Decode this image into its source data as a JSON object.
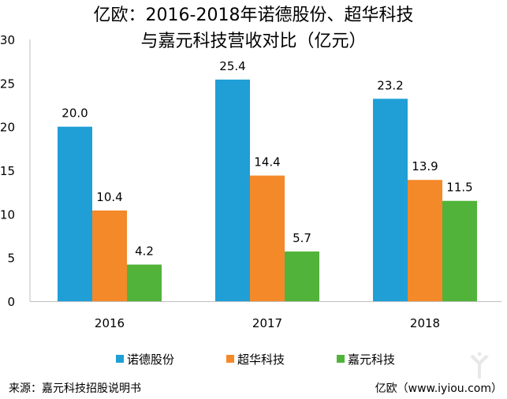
{
  "chart_data": {
    "type": "bar",
    "title": [
      "亿欧：2016-2018年诺德股份、超华科技",
      "与嘉元科技营收对比（亿元）"
    ],
    "categories": [
      "2016",
      "2017",
      "2018"
    ],
    "series": [
      {
        "name": "诺德股份",
        "values": [
          20.0,
          25.4,
          23.2
        ],
        "labels": [
          "20.0",
          "25.4",
          "23.2"
        ],
        "color": "#1f9fd6"
      },
      {
        "name": "超华科技",
        "values": [
          10.4,
          14.4,
          13.9
        ],
        "labels": [
          "10.4",
          "14.4",
          "13.9"
        ],
        "color": "#f4892a"
      },
      {
        "name": "嘉元科技",
        "values": [
          4.2,
          5.7,
          11.5
        ],
        "labels": [
          "4.2",
          "5.7",
          "11.5"
        ],
        "color": "#52b33a"
      }
    ],
    "y_ticks": [
      "0",
      "5",
      "10",
      "15",
      "20",
      "25",
      "30"
    ],
    "ylim": [
      0,
      30
    ],
    "grid": false,
    "legend_position": "bottom",
    "source_text": "来源：嘉元科技招股说明书",
    "credit_text": "亿欧（www.iyiou.com）",
    "watermark_icon": "iyiou-logo-icon"
  }
}
